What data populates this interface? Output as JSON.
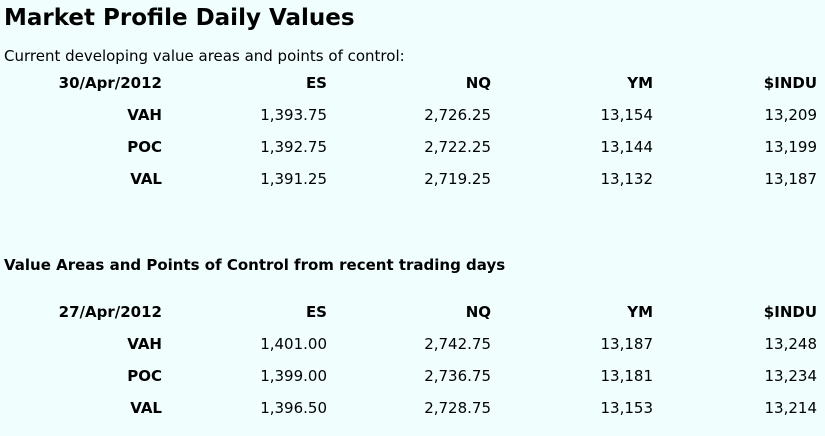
{
  "page": {
    "title": "Market Profile Daily Values",
    "subtitle": "Current developing value areas and points of control:",
    "recent_heading": "Value Areas and Points of Control from recent trading days"
  },
  "current": {
    "date": "30/Apr/2012",
    "columns": [
      "ES",
      "NQ",
      "YM",
      "$INDU"
    ],
    "rows": [
      {
        "label": "VAH",
        "values": [
          "1,393.75",
          "2,726.25",
          "13,154",
          "13,209"
        ]
      },
      {
        "label": "POC",
        "values": [
          "1,392.75",
          "2,722.25",
          "13,144",
          "13,199"
        ]
      },
      {
        "label": "VAL",
        "values": [
          "1,391.25",
          "2,719.25",
          "13,132",
          "13,187"
        ]
      }
    ]
  },
  "recent": {
    "date": "27/Apr/2012",
    "columns": [
      "ES",
      "NQ",
      "YM",
      "$INDU"
    ],
    "rows": [
      {
        "label": "VAH",
        "values": [
          "1,401.00",
          "2,742.75",
          "13,187",
          "13,248"
        ]
      },
      {
        "label": "POC",
        "values": [
          "1,399.00",
          "2,736.75",
          "13,181",
          "13,234"
        ]
      },
      {
        "label": "VAL",
        "values": [
          "1,396.50",
          "2,728.75",
          "13,153",
          "13,214"
        ]
      }
    ]
  }
}
